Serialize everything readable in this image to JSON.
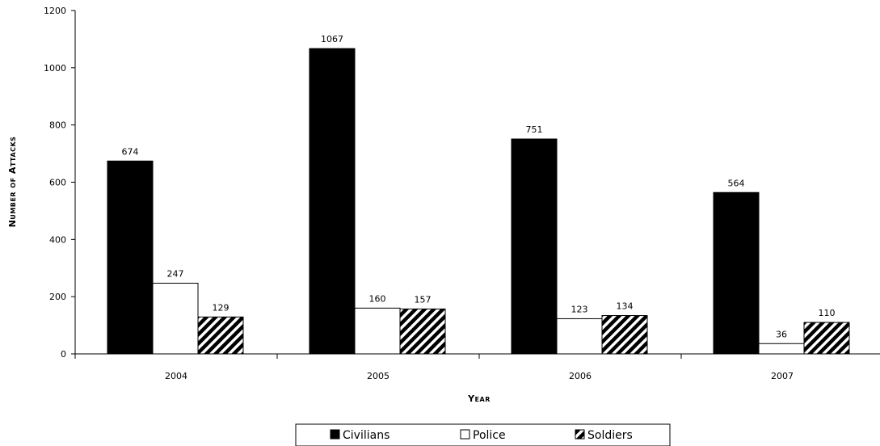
{
  "chart_data": {
    "type": "bar",
    "categories": [
      "2004",
      "2005",
      "2006",
      "2007"
    ],
    "series": [
      {
        "name": "Civilians",
        "values": [
          674,
          1067,
          751,
          564
        ],
        "fill": "#000000",
        "pattern": "solid"
      },
      {
        "name": "Police",
        "values": [
          247,
          160,
          123,
          36
        ],
        "fill": "#ffffff",
        "pattern": "solid"
      },
      {
        "name": "Soldiers",
        "values": [
          129,
          157,
          134,
          110
        ],
        "fill": "#000000",
        "pattern": "diagonal-hatch"
      }
    ],
    "title": "",
    "xlabel": "Year",
    "ylabel": "Number of Attacks",
    "ylim": [
      0,
      1200
    ],
    "yticks": [
      0,
      200,
      400,
      600,
      800,
      1000,
      1200
    ],
    "grid": false,
    "legend_position": "bottom-center",
    "data_labels": true
  }
}
